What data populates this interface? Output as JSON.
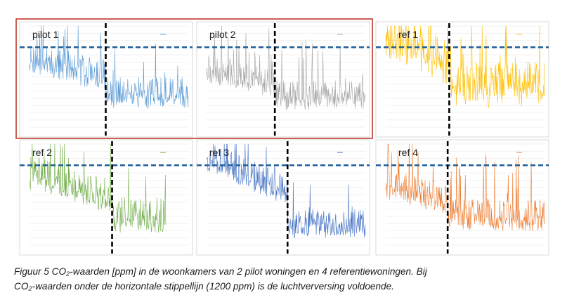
{
  "chart_data": [
    {
      "type": "line",
      "title": "pilot 1",
      "color": "#5b9bd5",
      "x_tick_labels": [
        "",
        "",
        "",
        "",
        "",
        "",
        "",
        "",
        "",
        "",
        "",
        "",
        "",
        "",
        "",
        "",
        "",
        "",
        "",
        ""
      ],
      "y_tick_labels": [
        "",
        "",
        "",
        "",
        "",
        "",
        "",
        "",
        "",
        "",
        "",
        "",
        "",
        "",
        ""
      ],
      "threshold": 1200,
      "baseline_level": 0.38,
      "early_level": 0.7,
      "late_level": 0.34,
      "volatility": 0.32,
      "split_fraction": 0.48,
      "end_fraction": 1.0,
      "seed": 11
    },
    {
      "type": "line",
      "title": "pilot 2",
      "color": "#a5a5a5",
      "x_tick_labels": [
        "",
        "",
        "",
        "",
        "",
        "",
        "",
        "",
        "",
        "",
        "",
        "",
        "",
        "",
        "",
        "",
        "",
        "",
        "",
        ""
      ],
      "y_tick_labels": [
        "",
        "",
        "",
        "",
        "",
        "",
        "",
        "",
        "",
        "",
        "",
        "",
        "",
        "",
        ""
      ],
      "threshold": 1200,
      "baseline_level": 0.35,
      "early_level": 0.58,
      "late_level": 0.32,
      "volatility": 0.3,
      "split_fraction": 0.43,
      "end_fraction": 1.0,
      "seed": 23
    },
    {
      "type": "line",
      "title": "ref 1",
      "color": "#ffc000",
      "x_tick_labels": [
        "",
        "",
        "",
        "",
        "",
        "",
        "",
        "",
        "",
        "",
        "",
        "",
        "",
        "",
        "",
        "",
        "",
        "",
        "",
        ""
      ],
      "y_tick_labels": [
        "",
        "",
        "",
        "",
        "",
        "",
        "",
        "",
        "",
        "",
        "",
        "",
        "",
        "",
        ""
      ],
      "threshold": 1200,
      "baseline_level": 0.45,
      "early_level": 0.92,
      "late_level": 0.42,
      "volatility": 0.45,
      "split_fraction": 0.4,
      "end_fraction": 1.0,
      "seed": 37
    },
    {
      "type": "line",
      "title": "ref 2",
      "color": "#70ad47",
      "x_tick_labels": [
        "",
        "",
        "",
        "",
        "",
        "",
        "",
        "",
        "",
        "",
        "",
        "",
        "",
        "",
        "",
        "",
        "",
        "",
        "",
        ""
      ],
      "y_tick_labels": [
        "",
        "",
        "",
        "",
        "",
        "",
        "",
        "",
        "",
        "",
        "",
        "",
        "",
        "",
        ""
      ],
      "threshold": 1200,
      "baseline_level": 0.32,
      "early_level": 0.72,
      "late_level": 0.3,
      "volatility": 0.35,
      "split_fraction": 0.52,
      "end_fraction": 0.86,
      "seed": 41
    },
    {
      "type": "line",
      "title": "ref 3",
      "color": "#4472c4",
      "x_tick_labels": [
        "",
        "",
        "",
        "",
        "",
        "",
        "",
        "",
        "",
        "",
        "",
        "",
        "",
        "",
        "",
        "",
        "",
        "",
        "",
        ""
      ],
      "y_tick_labels": [
        "",
        "",
        "",
        "",
        "",
        "",
        "",
        "",
        "",
        "",
        "",
        "",
        "",
        "",
        ""
      ],
      "threshold": 1200,
      "baseline_level": 0.3,
      "early_level": 0.88,
      "late_level": 0.22,
      "volatility": 0.3,
      "split_fraction": 0.51,
      "end_fraction": 1.0,
      "seed": 53
    },
    {
      "type": "line",
      "title": "ref 4",
      "color": "#ed7d31",
      "x_tick_labels": [
        "",
        "",
        "",
        "",
        "",
        "",
        "",
        "",
        "",
        "",
        "",
        "",
        "",
        "",
        "",
        "",
        "",
        "",
        "",
        ""
      ],
      "y_tick_labels": [
        "",
        "",
        "",
        "",
        "",
        "",
        "",
        "",
        "",
        "",
        "",
        "",
        "",
        "",
        ""
      ],
      "threshold": 1200,
      "baseline_level": 0.32,
      "early_level": 0.62,
      "late_level": 0.3,
      "volatility": 0.32,
      "split_fraction": 0.39,
      "end_fraction": 1.0,
      "seed": 67
    }
  ],
  "colors": {
    "threshold": "#1f5f99",
    "split": "#000000",
    "pilot_highlight": "#c0392b"
  },
  "caption": {
    "line1": "Figuur 5 CO₂-waarden [ppm] in de woonkamers van 2 pilot woningen en 4 referentiewoningen. Bij",
    "line2": "CO₂-waarden onder de horizontale stippellijn (1200 ppm) is de luchtverversing voldoende."
  }
}
